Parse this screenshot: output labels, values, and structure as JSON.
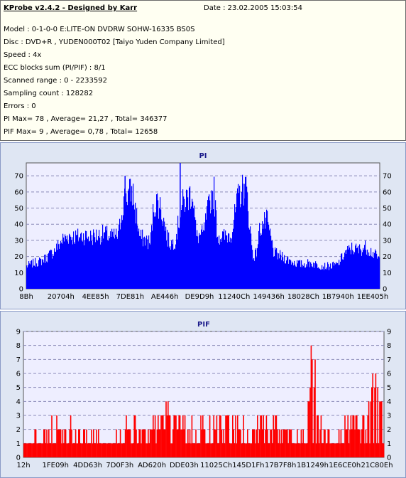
{
  "info": {
    "title": "KProbe v2.4.2 - Designed by Karr",
    "date": "Date : 23.02.2005 15:03:54",
    "lines": [
      "Model : 0-1-0-0 E:LITE-ON DVDRW SOHW-16335 BS0S",
      "Disc : DVD+R , YUDEN000T02 [Taiyo Yuden Company Limited]",
      "Speed : 4x",
      "ECC blocks sum (PI/PIF) : 8/1",
      "Scanned range : 0 - 2233592",
      "Sampling count : 128282",
      "Errors : 0",
      "PI Max= 78 , Average= 21,27 , Total= 346377",
      "PIF Max= 9 , Average= 0,78 , Total= 12658"
    ]
  },
  "chart_data": [
    {
      "type": "area",
      "title": "PI",
      "color": "#0000ff",
      "xlabel": "",
      "ylabel": "",
      "x_tick_labels": [
        "8Bh",
        "20704h",
        "4EE85h",
        "7DE81h",
        "AE446h",
        "DE9D9h",
        "11240Ch",
        "149436h",
        "18028Ch",
        "1B7940h",
        "1EE405h"
      ],
      "ylim": [
        0,
        78
      ],
      "y_ticks": [
        0,
        10,
        20,
        30,
        40,
        50,
        60,
        70
      ],
      "grid": true,
      "x_fraction": [
        0.0,
        0.02,
        0.04,
        0.06,
        0.08,
        0.1,
        0.12,
        0.14,
        0.16,
        0.18,
        0.2,
        0.22,
        0.24,
        0.26,
        0.27,
        0.28,
        0.3,
        0.32,
        0.34,
        0.35,
        0.36,
        0.37,
        0.38,
        0.4,
        0.41,
        0.42,
        0.44,
        0.46,
        0.47,
        0.48,
        0.5,
        0.52,
        0.53,
        0.54,
        0.56,
        0.58,
        0.6,
        0.62,
        0.64,
        0.65,
        0.66,
        0.68,
        0.7,
        0.72,
        0.74,
        0.76,
        0.78,
        0.8,
        0.82,
        0.84,
        0.86,
        0.88,
        0.9,
        0.92,
        0.94,
        0.96,
        0.98,
        1.0
      ],
      "values": [
        14,
        16,
        17,
        20,
        24,
        30,
        33,
        32,
        33,
        32,
        33,
        34,
        32,
        33,
        50,
        58,
        60,
        32,
        30,
        28,
        52,
        54,
        50,
        30,
        28,
        30,
        52,
        58,
        60,
        32,
        34,
        56,
        60,
        33,
        32,
        35,
        58,
        64,
        20,
        22,
        38,
        42,
        22,
        20,
        18,
        16,
        15,
        16,
        15,
        14,
        14,
        15,
        22,
        25,
        24,
        26,
        22,
        18
      ],
      "peaks": [
        {
          "x_fraction": 0.434,
          "value": 78
        },
        {
          "x_fraction": 0.278,
          "value": 70
        },
        {
          "x_fraction": 0.617,
          "value": 65
        }
      ]
    },
    {
      "type": "bar",
      "title": "PIF",
      "color": "#ff0000",
      "xlabel": "",
      "ylabel": "",
      "x_tick_labels": [
        "12h",
        "1FE09h",
        "4DD63h",
        "7D0F3h",
        "AD620h",
        "DDE03h",
        "11025Ch",
        "145D1Fh",
        "17B7F8h",
        "1B1249h",
        "1E6CE0h",
        "21C80Eh"
      ],
      "ylim": [
        0,
        9
      ],
      "y_ticks": [
        0,
        1,
        2,
        3,
        4,
        5,
        6,
        7,
        8,
        9
      ],
      "grid": true,
      "x_fraction": [
        0.0,
        0.05,
        0.1,
        0.15,
        0.2,
        0.25,
        0.28,
        0.3,
        0.33,
        0.36,
        0.4,
        0.42,
        0.45,
        0.5,
        0.55,
        0.6,
        0.63,
        0.66,
        0.7,
        0.74,
        0.78,
        0.8,
        0.82,
        0.86,
        0.9,
        0.93,
        0.95,
        0.97,
        0.98,
        0.99,
        1.0
      ],
      "values": [
        1,
        2,
        3,
        2,
        2,
        1,
        3,
        3,
        3,
        3,
        4,
        3,
        3,
        3,
        3,
        3,
        2,
        3,
        3,
        2,
        2,
        9,
        3,
        2,
        3,
        3,
        3,
        7,
        7,
        5,
        2
      ]
    }
  ]
}
